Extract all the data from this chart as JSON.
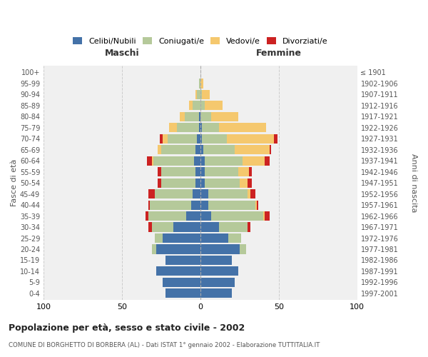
{
  "age_groups": [
    "0-4",
    "5-9",
    "10-14",
    "15-19",
    "20-24",
    "25-29",
    "30-34",
    "35-39",
    "40-44",
    "45-49",
    "50-54",
    "55-59",
    "60-64",
    "65-69",
    "70-74",
    "75-79",
    "80-84",
    "85-89",
    "90-94",
    "95-99",
    "100+"
  ],
  "birth_years": [
    "1997-2001",
    "1992-1996",
    "1987-1991",
    "1982-1986",
    "1977-1981",
    "1972-1976",
    "1967-1971",
    "1962-1966",
    "1957-1961",
    "1952-1956",
    "1947-1951",
    "1942-1946",
    "1937-1941",
    "1932-1936",
    "1927-1931",
    "1922-1926",
    "1917-1921",
    "1912-1916",
    "1907-1911",
    "1902-1906",
    "≤ 1901"
  ],
  "males": {
    "celibi": [
      22,
      24,
      28,
      22,
      28,
      24,
      17,
      9,
      6,
      5,
      3,
      3,
      4,
      3,
      2,
      1,
      1,
      0,
      0,
      0,
      0
    ],
    "coniugati": [
      0,
      0,
      0,
      0,
      3,
      5,
      14,
      24,
      26,
      24,
      22,
      22,
      26,
      22,
      19,
      14,
      9,
      5,
      2,
      1,
      0
    ],
    "vedovi": [
      0,
      0,
      0,
      0,
      0,
      0,
      0,
      0,
      0,
      0,
      0,
      0,
      1,
      2,
      3,
      5,
      3,
      2,
      1,
      0,
      0
    ],
    "divorziati": [
      0,
      0,
      0,
      0,
      0,
      0,
      2,
      2,
      1,
      4,
      2,
      2,
      3,
      0,
      2,
      0,
      0,
      0,
      0,
      0,
      0
    ]
  },
  "females": {
    "nubili": [
      20,
      22,
      24,
      20,
      25,
      18,
      12,
      7,
      5,
      5,
      3,
      3,
      3,
      2,
      1,
      1,
      0,
      0,
      0,
      0,
      0
    ],
    "coniugate": [
      0,
      0,
      0,
      0,
      4,
      8,
      18,
      33,
      30,
      25,
      22,
      21,
      24,
      20,
      16,
      11,
      7,
      3,
      1,
      0,
      0
    ],
    "vedove": [
      0,
      0,
      0,
      0,
      0,
      0,
      0,
      1,
      1,
      2,
      5,
      7,
      14,
      22,
      30,
      30,
      17,
      11,
      5,
      2,
      0
    ],
    "divorziate": [
      0,
      0,
      0,
      0,
      0,
      0,
      2,
      3,
      1,
      3,
      3,
      2,
      3,
      1,
      2,
      0,
      0,
      0,
      0,
      0,
      0
    ]
  },
  "colors": {
    "celibi": "#4472a8",
    "coniugati": "#b5c99a",
    "vedovi": "#f5c86e",
    "divorziati": "#cc2222"
  },
  "xlim": 100,
  "title": "Popolazione per età, sesso e stato civile - 2002",
  "subtitle": "COMUNE DI BORGHETTO DI BORBERA (AL) - Dati ISTAT 1° gennaio 2002 - Elaborazione TUTTITALIA.IT",
  "ylabel_left": "Fasce di età",
  "ylabel_right": "Anni di nascita",
  "maschi_label": "Maschi",
  "femmine_label": "Femmine",
  "bg_color": "#f0f0f0",
  "bar_height": 0.85
}
